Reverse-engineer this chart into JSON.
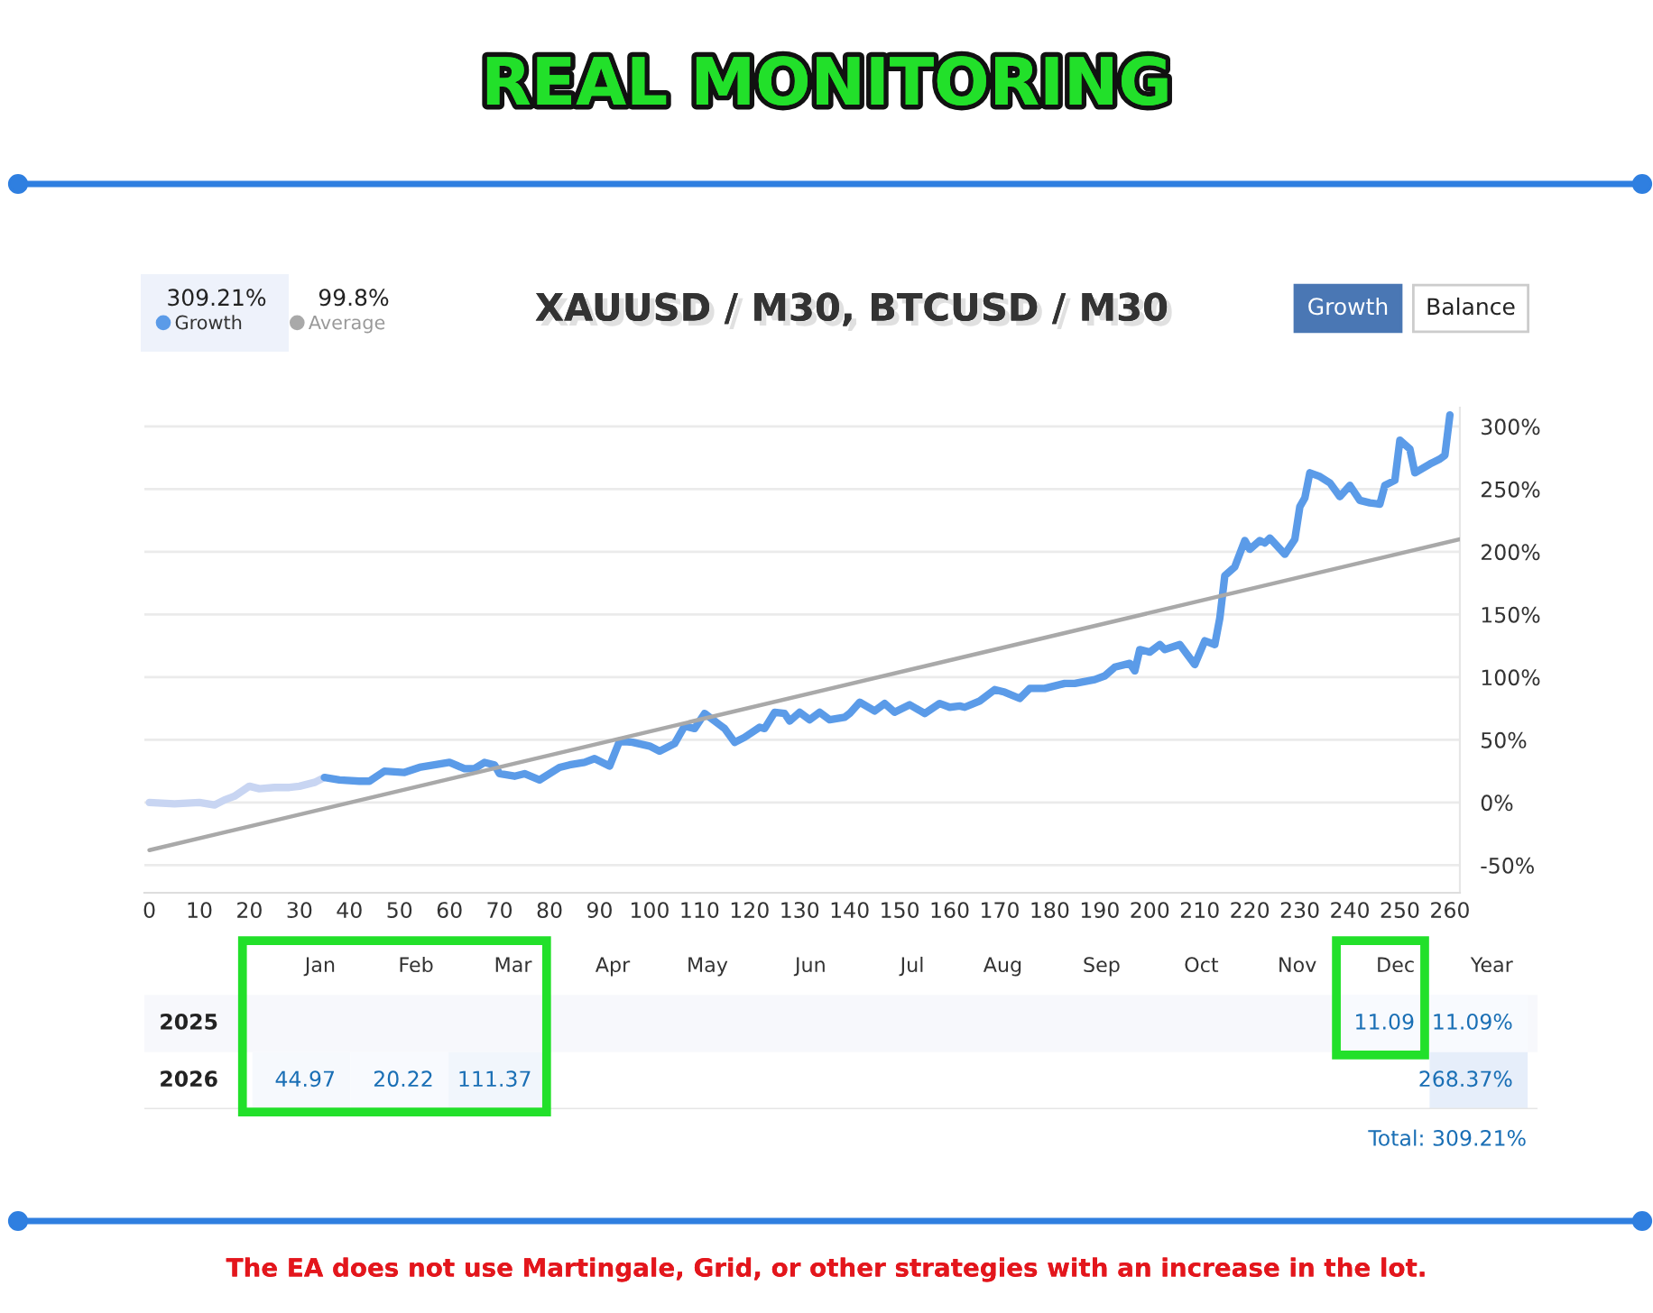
{
  "chart_data": [
    {
      "type": "line",
      "title": "REAL MONITORING",
      "subtitle": "XAUUSD / M30, BTCUSD / M30",
      "series": [
        {
          "color": "#c8d5f2",
          "x": [
            0,
            5,
            10,
            13,
            15,
            17,
            20,
            22,
            25,
            28,
            30,
            33,
            35
          ],
          "values": [
            0,
            -1,
            0,
            -2,
            2,
            5,
            13,
            11,
            12,
            12,
            13,
            16,
            20
          ]
        },
        {
          "name": "Growth",
          "color": "#5b9be8",
          "x": [
            35,
            38,
            42,
            44,
            47,
            51,
            54,
            60,
            63,
            65,
            67,
            69,
            70,
            73,
            75,
            78,
            82,
            84,
            87,
            89,
            92,
            94,
            96.6,
            100,
            102,
            105,
            107,
            109,
            111,
            114,
            115,
            117,
            119,
            122,
            123,
            125,
            127,
            128,
            130,
            132,
            134,
            136,
            139,
            140,
            142,
            145,
            147,
            149,
            152,
            155,
            158,
            160,
            162,
            163,
            166,
            169,
            171,
            174,
            176,
            179,
            183,
            185,
            189,
            191,
            193,
            196,
            197,
            198,
            200,
            202,
            203,
            206,
            209,
            211,
            213,
            214,
            215,
            217,
            219,
            220,
            222,
            223,
            224,
            227,
            229,
            230,
            231,
            232,
            234,
            236,
            238,
            240,
            242,
            244,
            246,
            247,
            249,
            250,
            252,
            253,
            256,
            258,
            259,
            260
          ],
          "values": [
            20,
            18,
            17,
            17,
            25,
            24,
            28,
            32,
            27,
            27,
            32,
            30,
            23,
            21,
            23,
            18,
            28,
            30,
            32,
            35,
            29,
            49,
            48,
            45,
            41,
            47,
            61,
            59,
            71,
            62,
            59,
            48,
            52,
            60,
            59,
            72,
            71,
            65,
            72,
            66,
            72,
            66,
            68,
            71,
            80,
            73,
            79,
            72,
            78,
            71,
            79,
            76,
            77,
            76,
            81,
            90,
            88,
            83,
            91,
            91,
            95,
            95,
            98,
            101,
            108,
            111,
            105,
            122,
            120,
            126,
            122,
            126,
            110,
            129,
            126,
            147,
            181,
            188,
            209,
            202,
            209,
            207,
            211,
            198,
            210,
            236,
            243,
            263,
            260,
            255,
            244,
            253,
            241,
            239,
            238,
            253,
            257,
            289,
            282,
            263,
            270,
            274,
            277,
            309.21
          ]
        },
        {
          "name": "Average",
          "color": "#a9a9a9",
          "x": [
            0,
            262
          ],
          "values": [
            -38,
            210
          ]
        }
      ],
      "xlim": [
        -1,
        262
      ],
      "xticks": [
        0,
        10,
        20,
        30,
        40,
        50,
        60,
        70,
        80,
        90,
        100,
        110,
        120,
        130,
        140,
        150,
        160,
        170,
        180,
        190,
        200,
        210,
        220,
        230,
        240,
        250,
        260
      ],
      "ylim": [
        -72,
        315
      ],
      "yticks": [
        {
          "value": -50,
          "label": "-50%"
        },
        {
          "value": 0,
          "label": "0%"
        },
        {
          "value": 50,
          "label": "50%"
        },
        {
          "value": 100,
          "label": "100%"
        },
        {
          "value": 150,
          "label": "150%"
        },
        {
          "value": 200,
          "label": "200%"
        },
        {
          "value": 250,
          "label": "250%"
        },
        {
          "value": 300,
          "label": "300%"
        }
      ],
      "grid": "y",
      "legend": "top left",
      "marker": "none",
      "line_style": "solid",
      "annotations": [
        "309.21%",
        "99.8%",
        "Growth",
        "Balance"
      ]
    },
    {
      "type": "heatmap",
      "categories": [
        "Jan",
        "Feb",
        "Mar",
        "Apr",
        "May",
        "Jun",
        "Jul",
        "Aug",
        "Sep",
        "Oct",
        "Nov",
        "Dec",
        "Year"
      ],
      "y_categories": [
        "2025",
        "2026"
      ],
      "cells": [
        [
          null,
          null,
          null,
          null,
          null,
          null,
          null,
          null,
          null,
          null,
          null,
          11.09,
          11.09
        ],
        [
          44.97,
          20.22,
          111.37,
          null,
          null,
          null,
          null,
          null,
          null,
          null,
          null,
          null,
          268.37
        ]
      ],
      "cell_labels": [
        [
          null,
          null,
          null,
          null,
          null,
          null,
          null,
          null,
          null,
          null,
          null,
          "11.09",
          "11.09%"
        ],
        [
          "44.97",
          "20.22",
          "111.37",
          null,
          null,
          null,
          null,
          null,
          null,
          null,
          null,
          null,
          "268.37%"
        ]
      ],
      "annotations": [
        "Total: 309.21%",
        "The EA does not use Martingale, Grid, or other strategies with an increase in the lot."
      ]
    }
  ]
}
